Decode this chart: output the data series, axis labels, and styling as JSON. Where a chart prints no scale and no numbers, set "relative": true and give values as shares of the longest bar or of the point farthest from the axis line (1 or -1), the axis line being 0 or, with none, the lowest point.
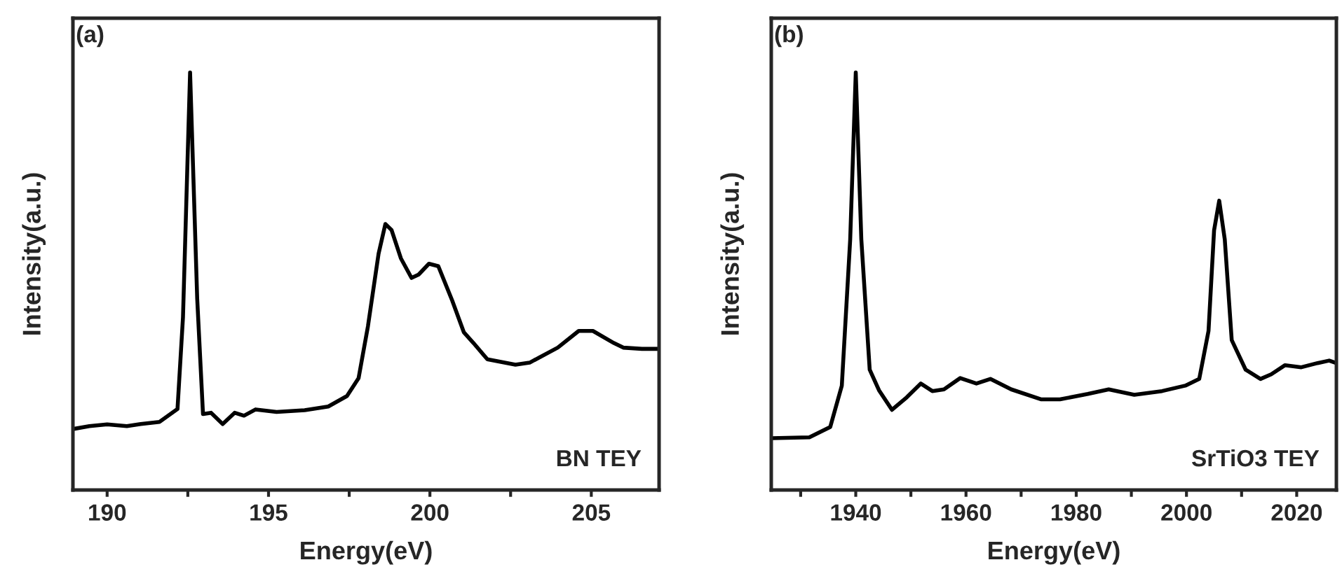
{
  "chart_data": [
    {
      "type": "line",
      "relative": true,
      "xlabel": "Energy(eV)",
      "ylabel": "Intensity(a.u.)",
      "annotations": [
        "(a)",
        "BN TEY"
      ],
      "xlim": [
        188.94,
        207.1
      ],
      "xticks": [
        190,
        {
          "value": 192.5,
          "label": null
        },
        195,
        {
          "value": 197.5,
          "label": null
        },
        200,
        {
          "value": 202.5,
          "label": null
        },
        205
      ],
      "tick_labels": "x",
      "grid": false,
      "legend": false,
      "series": [
        {
          "color": "#000000",
          "x": [
            188.94,
            189.45,
            190,
            190.61,
            191.04,
            191.62,
            192.18,
            192.35,
            192.57,
            192.79,
            192.97,
            193.22,
            193.58,
            193.95,
            194.24,
            194.6,
            195.25,
            196.12,
            196.85,
            197.43,
            197.79,
            198.08,
            198.41,
            198.62,
            198.81,
            199.1,
            199.43,
            199.65,
            199.97,
            200.26,
            200.69,
            201.05,
            201.35,
            201.78,
            202.65,
            203.09,
            203.96,
            204.61,
            205.05,
            205.7,
            205.99,
            206.57,
            207.08
          ],
          "values": [
            0.146,
            0.153,
            0.157,
            0.153,
            0.158,
            0.163,
            0.194,
            0.414,
            1.0,
            0.459,
            0.182,
            0.185,
            0.158,
            0.185,
            0.178,
            0.193,
            0.187,
            0.191,
            0.2,
            0.225,
            0.268,
            0.392,
            0.566,
            0.637,
            0.623,
            0.555,
            0.508,
            0.516,
            0.542,
            0.536,
            0.454,
            0.378,
            0.352,
            0.313,
            0.3,
            0.305,
            0.341,
            0.381,
            0.381,
            0.352,
            0.341,
            0.338,
            0.338
          ]
        }
      ]
    },
    {
      "type": "line",
      "relative": true,
      "xlabel": "Energy(eV)",
      "ylabel": "Intensity(a.u.)",
      "annotations": [
        "(b)",
        "SrTiO3 TEY"
      ],
      "xlim": [
        1924.67,
        2027.2
      ],
      "xticks": [
        {
          "value": 1930,
          "label": null
        },
        1940,
        {
          "value": 1950,
          "label": null
        },
        1960,
        {
          "value": 1970,
          "label": null
        },
        1980,
        {
          "value": 1990,
          "label": null
        },
        2000,
        {
          "value": 2010,
          "label": null
        },
        2020
      ],
      "tick_labels": "x",
      "grid": false,
      "legend": false,
      "series": [
        {
          "color": "#000000",
          "x": [
            1924.67,
            1931.58,
            1935.37,
            1937.47,
            1938.99,
            1940,
            1941.01,
            1942.53,
            1944.21,
            1946.57,
            1949.26,
            1951.79,
            1953.89,
            1956,
            1958.95,
            1961.89,
            1964.42,
            1968.21,
            1973.68,
            1977.05,
            1982.11,
            1985.89,
            1990.53,
            1995.58,
            1999.79,
            2002.32,
            2004,
            2005.01,
            2005.94,
            2006.95,
            2008.21,
            2010.74,
            2013.43,
            2015.37,
            2017.89,
            2020.84,
            2023.79,
            2025.89,
            2027.16
          ],
          "values": [
            0.124,
            0.126,
            0.151,
            0.25,
            0.6,
            1.0,
            0.6,
            0.288,
            0.239,
            0.192,
            0.222,
            0.255,
            0.237,
            0.241,
            0.268,
            0.255,
            0.266,
            0.241,
            0.217,
            0.217,
            0.23,
            0.241,
            0.228,
            0.237,
            0.25,
            0.266,
            0.381,
            0.622,
            0.693,
            0.6,
            0.359,
            0.288,
            0.266,
            0.277,
            0.299,
            0.294,
            0.304,
            0.31,
            0.304
          ]
        }
      ]
    }
  ]
}
